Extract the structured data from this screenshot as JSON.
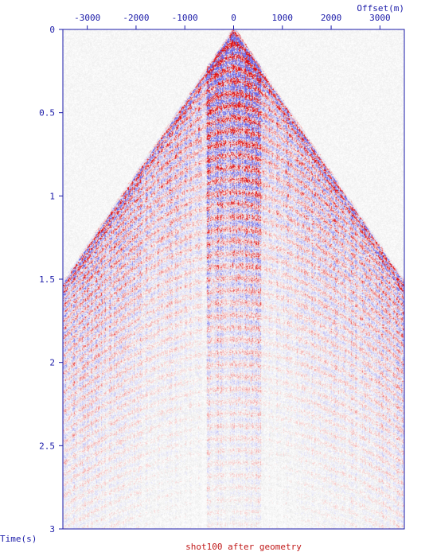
{
  "chart_data": {
    "type": "heatmap",
    "title": "shot100 after geometry",
    "xlabel": "Offset(m)",
    "ylabel": "Time(s)",
    "x_axis_position": "top",
    "x_ticks": [
      -3000,
      -2000,
      -1000,
      0,
      1000,
      2000,
      3000
    ],
    "x_tick_labels": [
      "-3000",
      "-2000",
      "-1000",
      "0",
      "1000",
      "2000",
      "3000"
    ],
    "y_ticks": [
      0,
      0.5,
      1,
      1.5,
      2,
      2.5,
      3
    ],
    "y_tick_labels": [
      "0",
      "0.5",
      "1",
      "1.5",
      "2",
      "2.5",
      "3"
    ],
    "xlim": [
      -3500,
      3500
    ],
    "ylim": [
      0,
      3
    ],
    "y_inverted": true,
    "grid": false,
    "first_break_velocity_mps": 2300,
    "first_break_t0_s": 0.0,
    "noise_band_halfwidth_m": 550,
    "colormap": {
      "positive": "#e01010",
      "negative": "#6a6ae8",
      "zero": "#ffffff"
    }
  },
  "colors": {
    "axis": "#1a1aa8",
    "title": "#c01818",
    "background": "#ffffff"
  }
}
